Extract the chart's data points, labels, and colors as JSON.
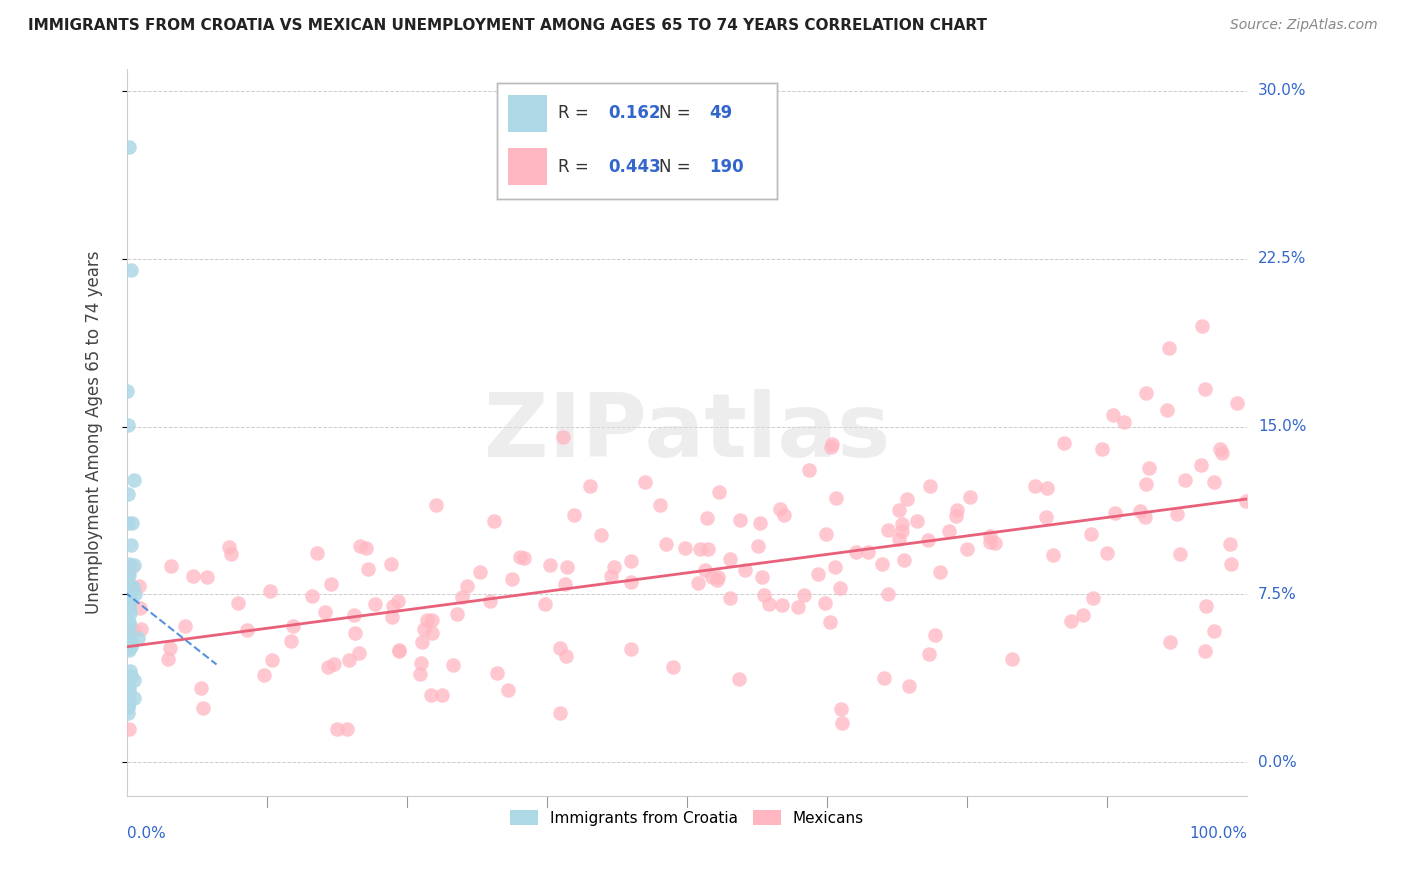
{
  "title": "IMMIGRANTS FROM CROATIA VS MEXICAN UNEMPLOYMENT AMONG AGES 65 TO 74 YEARS CORRELATION CHART",
  "source": "Source: ZipAtlas.com",
  "ylabel": "Unemployment Among Ages 65 to 74 years",
  "ytick_labels": [
    "0.0%",
    "7.5%",
    "15.0%",
    "22.5%",
    "30.0%"
  ],
  "ytick_values": [
    0.0,
    7.5,
    15.0,
    22.5,
    30.0
  ],
  "xlim": [
    0.0,
    100.0
  ],
  "ylim": [
    -1.5,
    31.0
  ],
  "legend_r_croatia": "0.162",
  "legend_n_croatia": "49",
  "legend_r_mexican": "0.443",
  "legend_n_mexican": "190",
  "color_croatia": "#ADD8E6",
  "color_croatia_line": "#4488DD",
  "color_mexican": "#FFB6C1",
  "color_mexican_line": "#E8607A",
  "color_blue_text": "#3366CC",
  "color_axis_labels": "#3366CC",
  "background_color": "#FFFFFF",
  "watermark": "ZIPatlas",
  "title_fontsize": 11,
  "source_fontsize": 10,
  "label_fontsize": 12
}
